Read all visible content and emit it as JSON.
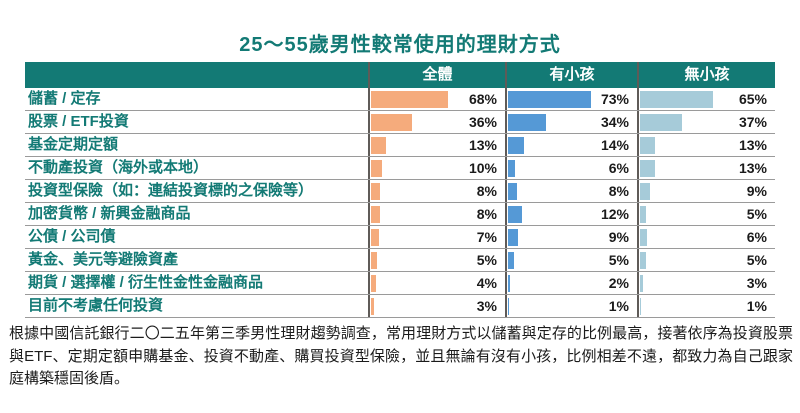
{
  "title": "25～55歲男性較常使用的理財方式",
  "footer": {
    "text": "根據中國信託銀行二〇二五年第三季男性理財趨勢調查，常用理財方式以儲蓄與定存的比例最高，接著依序為投資股票與ETF、定期定額申購基金、投資不動產、購買投資型保險，並且無論有沒有小孩，比例相差不遠，都致力為自己跟家庭構築穩固後盾。"
  },
  "colors": {
    "teal_header": "#137a75",
    "overall_bar": "#f5ab7c",
    "with_kids_bar": "#5599d6",
    "no_kids_bar": "#a6cbd9",
    "row_border": "#9a9a9a",
    "column_border": "#5f5b58",
    "value_text": "#1b1b1b"
  },
  "chart_data": {
    "type": "bar",
    "orientation": "horizontal",
    "title": "25～55歲男性較常使用的理財方式",
    "value_format": "percent",
    "xlim": [
      0,
      80
    ],
    "legend_position": "column-headers",
    "categories": [
      "儲蓄 / 定存",
      "股票 / ETF投資",
      "基金定期定額",
      "不動產投資（海外或本地）",
      "投資型保險（如：連結投資標的之保險等）",
      "加密貨幣 / 新興金融商品",
      "公債 / 公司債",
      "黃金、美元等避險資產",
      "期貨 / 選擇權 / 衍生性金性金融商品",
      "目前不考慮任何投資"
    ],
    "series": [
      {
        "name": "全體",
        "color": "#f5ab7c",
        "values": [
          68,
          36,
          13,
          10,
          8,
          8,
          7,
          5,
          4,
          3
        ]
      },
      {
        "name": "有小孩",
        "color": "#5599d6",
        "values": [
          73,
          34,
          14,
          6,
          8,
          12,
          9,
          5,
          2,
          1
        ]
      },
      {
        "name": "無小孩",
        "color": "#a6cbd9",
        "values": [
          65,
          37,
          13,
          13,
          9,
          5,
          6,
          5,
          3,
          1
        ]
      }
    ]
  }
}
